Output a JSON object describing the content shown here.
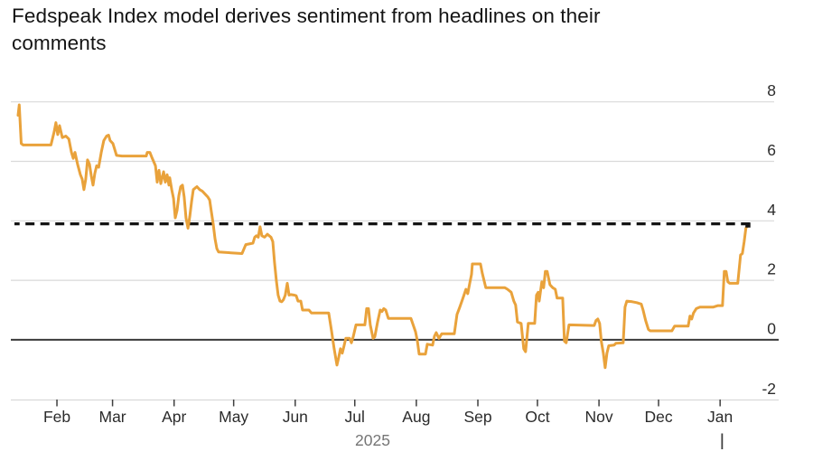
{
  "header": {
    "title": "Fedspeak Index model derives sentiment from headlines on their comments"
  },
  "chart_data": {
    "type": "line",
    "title": "Fedspeak Index model derives sentiment from headlines on their comments",
    "xlabel": "",
    "ylabel": "",
    "x_axis": {
      "unit": "day-of-year-2025",
      "range": [
        6,
        392
      ],
      "grid": false
    },
    "y_axis": {
      "range": [
        -2.1,
        8.6
      ],
      "grid": true,
      "tick_side": "right"
    },
    "y_ticks": [
      "8",
      "6",
      "4",
      "2",
      "0",
      "-2"
    ],
    "y_tick_values": [
      8,
      6,
      4,
      2,
      0,
      -2
    ],
    "x_ticks": [
      {
        "label": "Feb",
        "day": 31
      },
      {
        "label": "Mar",
        "day": 59
      },
      {
        "label": "Apr",
        "day": 90
      },
      {
        "label": "May",
        "day": 120
      },
      {
        "label": "Jun",
        "day": 151
      },
      {
        "label": "Jul",
        "day": 181
      },
      {
        "label": "Aug",
        "day": 212
      },
      {
        "label": "Sep",
        "day": 243
      },
      {
        "label": "Oct",
        "day": 273
      },
      {
        "label": "Nov",
        "day": 304
      },
      {
        "label": "Dec",
        "day": 334
      },
      {
        "label": "Jan",
        "day": 365
      }
    ],
    "year_label": {
      "text": "2025",
      "day": 190
    },
    "year_start_marker_day": 366,
    "reference_lines": {
      "dashed_latest_value": 3.9,
      "zero_baseline": 0
    },
    "series": [
      {
        "name": "Fedspeak Index",
        "color": "#E9A23B",
        "end_marker_color": "#141414",
        "points_day_value": [
          [
            11.4,
            7.55
          ],
          [
            12,
            7.9
          ],
          [
            13,
            6.6
          ],
          [
            14,
            6.55
          ],
          [
            28,
            6.55
          ],
          [
            29.6,
            7.0
          ],
          [
            30.5,
            7.3
          ],
          [
            31.4,
            6.9
          ],
          [
            32.3,
            7.2
          ],
          [
            33.7,
            6.8
          ],
          [
            35.5,
            6.85
          ],
          [
            37,
            6.75
          ],
          [
            38.3,
            6.3
          ],
          [
            39.2,
            6.1
          ],
          [
            40.1,
            6.3
          ],
          [
            41.4,
            5.9
          ],
          [
            42.8,
            5.55
          ],
          [
            43.7,
            5.4
          ],
          [
            44.6,
            5.05
          ],
          [
            45.5,
            5.4
          ],
          [
            46.4,
            6.05
          ],
          [
            47.4,
            5.9
          ],
          [
            48.3,
            5.5
          ],
          [
            49.2,
            5.2
          ],
          [
            50.1,
            5.6
          ],
          [
            51,
            5.85
          ],
          [
            52,
            5.8
          ],
          [
            53.3,
            6.3
          ],
          [
            54.6,
            6.7
          ],
          [
            56,
            6.85
          ],
          [
            57,
            6.88
          ],
          [
            57.8,
            6.7
          ],
          [
            59.2,
            6.6
          ],
          [
            60.1,
            6.4
          ],
          [
            61,
            6.2
          ],
          [
            63.7,
            6.18
          ],
          [
            76,
            6.18
          ],
          [
            76.5,
            6.3
          ],
          [
            77.8,
            6.3
          ],
          [
            78.7,
            6.15
          ],
          [
            80.6,
            5.85
          ],
          [
            81.5,
            5.3
          ],
          [
            82.4,
            5.7
          ],
          [
            83.3,
            5.25
          ],
          [
            84.7,
            5.65
          ],
          [
            85.6,
            5.3
          ],
          [
            86.5,
            5.55
          ],
          [
            87.4,
            5.2
          ],
          [
            87.8,
            5.45
          ],
          [
            88.8,
            5.05
          ],
          [
            89.7,
            4.75
          ],
          [
            90.6,
            4.1
          ],
          [
            91.5,
            4.35
          ],
          [
            92.4,
            4.85
          ],
          [
            93.3,
            5.15
          ],
          [
            94.2,
            5.2
          ],
          [
            95.1,
            4.8
          ],
          [
            96,
            4.1
          ],
          [
            97,
            3.75
          ],
          [
            97.9,
            4.15
          ],
          [
            98.8,
            4.65
          ],
          [
            99.7,
            5.05
          ],
          [
            100.6,
            5.1
          ],
          [
            101.5,
            5.15
          ],
          [
            102.9,
            5.05
          ],
          [
            104.2,
            5.0
          ],
          [
            105.6,
            4.9
          ],
          [
            107,
            4.8
          ],
          [
            107.9,
            4.7
          ],
          [
            108.8,
            4.3
          ],
          [
            109.7,
            3.9
          ],
          [
            110.6,
            3.4
          ],
          [
            111.5,
            3.07
          ],
          [
            112.4,
            2.95
          ],
          [
            124.2,
            2.9
          ],
          [
            126.1,
            3.2
          ],
          [
            129.7,
            3.25
          ],
          [
            130.6,
            3.45
          ],
          [
            131.5,
            3.5
          ],
          [
            132.4,
            3.45
          ],
          [
            133.3,
            3.8
          ],
          [
            134.2,
            3.5
          ],
          [
            135.6,
            3.45
          ],
          [
            137,
            3.55
          ],
          [
            137.9,
            3.5
          ],
          [
            138.8,
            3.45
          ],
          [
            139.7,
            3.3
          ],
          [
            140.6,
            2.6
          ],
          [
            141.5,
            2.0
          ],
          [
            142.4,
            1.5
          ],
          [
            143.3,
            1.3
          ],
          [
            144.2,
            1.28
          ],
          [
            145.1,
            1.35
          ],
          [
            146,
            1.5
          ],
          [
            147,
            1.9
          ],
          [
            147.9,
            1.5
          ],
          [
            148.8,
            1.52
          ],
          [
            150.6,
            1.5
          ],
          [
            151.5,
            1.48
          ],
          [
            152.4,
            1.3
          ],
          [
            153.8,
            1.3
          ],
          [
            154.7,
            1.0
          ],
          [
            157.9,
            1.0
          ],
          [
            159.2,
            0.9
          ],
          [
            167.9,
            0.9
          ],
          [
            169.3,
            0.3
          ],
          [
            170.6,
            -0.3
          ],
          [
            172,
            -0.85
          ],
          [
            172.9,
            -0.6
          ],
          [
            173.8,
            -0.3
          ],
          [
            174.7,
            -0.45
          ],
          [
            175.6,
            -0.2
          ],
          [
            176.5,
            0.05
          ],
          [
            178.4,
            0.05
          ],
          [
            179.3,
            -0.1
          ],
          [
            180.2,
            0.1
          ],
          [
            181.6,
            0.5
          ],
          [
            186.1,
            0.5
          ],
          [
            187,
            1.05
          ],
          [
            187.9,
            1.05
          ],
          [
            188.8,
            0.5
          ],
          [
            190.2,
            0.05
          ],
          [
            191.1,
            0.1
          ],
          [
            192.5,
            0.6
          ],
          [
            193.8,
            1.0
          ],
          [
            194.7,
            0.95
          ],
          [
            195.6,
            1.05
          ],
          [
            196.6,
            1.0
          ],
          [
            197.9,
            0.72
          ],
          [
            209.3,
            0.72
          ],
          [
            211.6,
            0.27
          ],
          [
            212.5,
            -0.03
          ],
          [
            213.4,
            -0.48
          ],
          [
            216.6,
            -0.48
          ],
          [
            217.5,
            -0.15
          ],
          [
            220.2,
            -0.18
          ],
          [
            221.1,
            0.12
          ],
          [
            222,
            0.24
          ],
          [
            223.4,
            0.05
          ],
          [
            224.8,
            0.2
          ],
          [
            231.1,
            0.2
          ],
          [
            232.5,
            0.85
          ],
          [
            233.9,
            1.1
          ],
          [
            235.2,
            1.35
          ],
          [
            237,
            1.7
          ],
          [
            237.9,
            1.55
          ],
          [
            238.9,
            1.9
          ],
          [
            239.8,
            2.2
          ],
          [
            240.2,
            2.55
          ],
          [
            244.3,
            2.55
          ],
          [
            245.2,
            2.25
          ],
          [
            246.1,
            2.0
          ],
          [
            247,
            1.75
          ],
          [
            256.6,
            1.75
          ],
          [
            257.9,
            1.7
          ],
          [
            259.8,
            1.6
          ],
          [
            261.1,
            1.3
          ],
          [
            262,
            1.17
          ],
          [
            262.9,
            0.6
          ],
          [
            264.8,
            0.55
          ],
          [
            266.1,
            -0.3
          ],
          [
            267,
            -0.4
          ],
          [
            268.4,
            0.55
          ],
          [
            271.6,
            0.55
          ],
          [
            272.5,
            1.5
          ],
          [
            273.4,
            1.6
          ],
          [
            273.9,
            1.3
          ],
          [
            275.2,
            1.95
          ],
          [
            276.1,
            1.75
          ],
          [
            277,
            2.3
          ],
          [
            277.9,
            2.3
          ],
          [
            279.3,
            1.85
          ],
          [
            280.7,
            1.75
          ],
          [
            282,
            1.7
          ],
          [
            282.9,
            1.4
          ],
          [
            285.7,
            1.4
          ],
          [
            286.6,
            -0.05
          ],
          [
            287.5,
            -0.1
          ],
          [
            288.9,
            0.5
          ],
          [
            301.6,
            0.48
          ],
          [
            302.5,
            0.65
          ],
          [
            303.4,
            0.7
          ],
          [
            304.3,
            0.55
          ],
          [
            305.2,
            -0.06
          ],
          [
            306.2,
            -0.45
          ],
          [
            307.1,
            -0.94
          ],
          [
            308,
            -0.45
          ],
          [
            308.9,
            -0.2
          ],
          [
            311.6,
            -0.18
          ],
          [
            312.5,
            -0.12
          ],
          [
            316.2,
            -0.1
          ],
          [
            317.1,
            1.1
          ],
          [
            318,
            1.3
          ],
          [
            320.7,
            1.28
          ],
          [
            323,
            1.25
          ],
          [
            325.3,
            1.2
          ],
          [
            326.2,
            1.0
          ],
          [
            327.5,
            0.65
          ],
          [
            328.9,
            0.35
          ],
          [
            329.8,
            0.3
          ],
          [
            340.7,
            0.3
          ],
          [
            342.1,
            0.46
          ],
          [
            348.9,
            0.46
          ],
          [
            349.8,
            0.8
          ],
          [
            350.7,
            0.7
          ],
          [
            351.6,
            0.9
          ],
          [
            353,
            1.05
          ],
          [
            354.8,
            1.1
          ],
          [
            361.6,
            1.1
          ],
          [
            363.9,
            1.15
          ],
          [
            366.2,
            1.15
          ],
          [
            367.1,
            2.3
          ],
          [
            368,
            2.3
          ],
          [
            368.9,
            1.95
          ],
          [
            369.8,
            1.9
          ],
          [
            373.9,
            1.9
          ],
          [
            375.3,
            2.85
          ],
          [
            376.2,
            2.9
          ],
          [
            377.1,
            3.3
          ],
          [
            378,
            3.75
          ],
          [
            378.9,
            3.85
          ]
        ]
      }
    ],
    "legend": {
      "visible": false
    }
  },
  "colors": {
    "background": "#FFFFFF",
    "line": "#E9A23B",
    "dashed_reference": "#141414",
    "gridline": "#D9D9D9",
    "zero_line": "#3A3A3A",
    "axis_tick": "#3F3F3F",
    "axis_label": "#2B2B2B",
    "year_label": "#757575",
    "title": "#141414"
  }
}
